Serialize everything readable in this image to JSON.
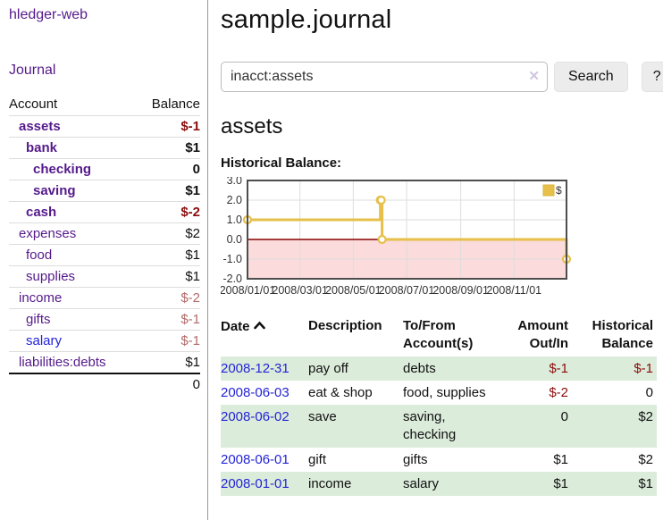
{
  "app": {
    "brand": "hledger-web"
  },
  "sidebar": {
    "journal_link": "Journal",
    "accounts": {
      "header_account": "Account",
      "header_balance": "Balance",
      "rows": [
        {
          "name": "assets",
          "level": 1,
          "bold": true,
          "name_color": "purple",
          "balance": "$-1",
          "balance_color": "darkred"
        },
        {
          "name": "bank",
          "level": 2,
          "bold": true,
          "name_color": "purple",
          "balance": "$1",
          "balance_color": "black"
        },
        {
          "name": "checking",
          "level": 3,
          "bold": true,
          "name_color": "purple",
          "balance": "0",
          "balance_color": "black"
        },
        {
          "name": "saving",
          "level": 3,
          "bold": true,
          "name_color": "purple",
          "balance": "$1",
          "balance_color": "black"
        },
        {
          "name": "cash",
          "level": 2,
          "bold": true,
          "name_color": "purple",
          "balance": "$-2",
          "balance_color": "darkred"
        },
        {
          "name": "expenses",
          "level": 1,
          "bold": false,
          "name_color": "purple",
          "balance": "$2",
          "balance_color": "black"
        },
        {
          "name": "food",
          "level": 2,
          "bold": false,
          "name_color": "purple",
          "balance": "$1",
          "balance_color": "black"
        },
        {
          "name": "supplies",
          "level": 2,
          "bold": false,
          "name_color": "purple",
          "balance": "$1",
          "balance_color": "black"
        },
        {
          "name": "income",
          "level": 1,
          "bold": false,
          "name_color": "purple",
          "balance": "$-2",
          "balance_color": "rose"
        },
        {
          "name": "gifts",
          "level": 2,
          "bold": false,
          "name_color": "purple",
          "balance": "$-1",
          "balance_color": "rose"
        },
        {
          "name": "salary",
          "level": 2,
          "bold": false,
          "name_color": "blue",
          "balance": "$-1",
          "balance_color": "rose"
        },
        {
          "name": "liabilities:debts",
          "level": 1,
          "bold": false,
          "name_color": "purple",
          "balance": "$1",
          "balance_color": "black"
        }
      ],
      "total": "0"
    }
  },
  "main": {
    "title": "sample.journal",
    "search": {
      "value": "inacct:assets",
      "clear_icon": "✕",
      "button_label": "Search",
      "help_label": "?"
    },
    "account_heading": "assets",
    "chart_label": "Historical Balance:"
  },
  "chart_data": {
    "type": "line",
    "title": "Historical Balance",
    "legend": [
      "$"
    ],
    "x_range": [
      "2008/01/01",
      "2008/12/31"
    ],
    "x_ticks": [
      "2008/01/01",
      "2008/03/01",
      "2008/05/01",
      "2008/07/01",
      "2008/09/01",
      "2008/11/01"
    ],
    "y_ticks": [
      3.0,
      2.0,
      1.0,
      0.0,
      -1.0,
      -2.0
    ],
    "ylim": [
      -2,
      3
    ],
    "step_style": "step-after",
    "series": [
      {
        "name": "$",
        "points": [
          [
            "2008/01/01",
            1
          ],
          [
            "2008/06/01",
            2
          ],
          [
            "2008/06/02",
            2
          ],
          [
            "2008/06/03",
            0
          ],
          [
            "2008/12/31",
            -1
          ]
        ]
      }
    ],
    "colors": {
      "line": "#e6c04a",
      "marker_fill": "#ffffff",
      "grid": "#dddddd",
      "zero_line": "#8b0000",
      "negative_region": "#fbdbdb",
      "border": "#4d4d4d"
    }
  },
  "register": {
    "headers": {
      "date": "Date",
      "description": "Description",
      "accounts": "To/From Account(s)",
      "amount": "Amount Out/In",
      "balance": "Historical Balance"
    },
    "rows": [
      {
        "date": "2008-12-31",
        "description": "pay off",
        "accounts": "debts",
        "amount": "$-1",
        "amount_neg": true,
        "balance": "$-1",
        "balance_neg": true
      },
      {
        "date": "2008-06-03",
        "description": "eat & shop",
        "accounts": "food, supplies",
        "amount": "$-2",
        "amount_neg": true,
        "balance": "0",
        "balance_neg": false
      },
      {
        "date": "2008-06-02",
        "description": "save",
        "accounts": "saving, checking",
        "amount": "0",
        "amount_neg": false,
        "balance": "$2",
        "balance_neg": false
      },
      {
        "date": "2008-06-01",
        "description": "gift",
        "accounts": "gifts",
        "amount": "$1",
        "amount_neg": false,
        "balance": "$2",
        "balance_neg": false
      },
      {
        "date": "2008-01-01",
        "description": "income",
        "accounts": "salary",
        "amount": "$1",
        "amount_neg": false,
        "balance": "$1",
        "balance_neg": false
      }
    ]
  }
}
